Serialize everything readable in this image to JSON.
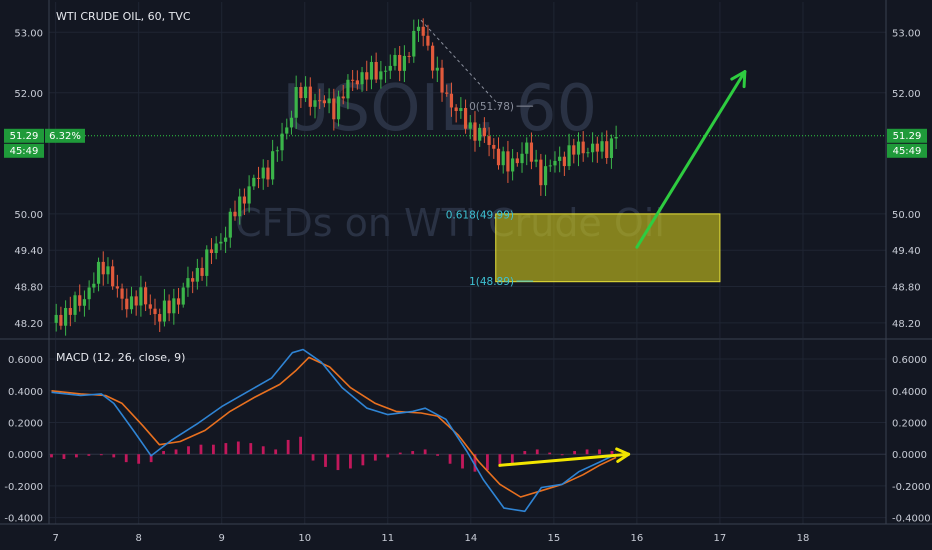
{
  "chart_data": [
    {
      "type": "candlestick",
      "title": "WTI CRUDE OIL, 60, TVC",
      "watermark_symbol": "USOIL, 60",
      "watermark_desc": "CFDs on WTI Crude Oil",
      "price_badge": "51.29",
      "change_badge": "6.32%",
      "countdown_badge": "45:49",
      "current_price": 51.29,
      "y_ticks": [
        "53.00",
        "52.00",
        "50.00",
        "49.40",
        "48.80",
        "48.20"
      ],
      "y_tick_values": [
        53.0,
        52.0,
        50.0,
        49.4,
        48.8,
        48.2
      ],
      "x_ticks": [
        "7",
        "8",
        "9",
        "10",
        "11",
        "14",
        "15",
        "16",
        "17",
        "18"
      ],
      "x_tick_values": [
        0,
        1,
        2,
        3,
        4,
        5,
        6,
        7,
        8,
        9
      ],
      "ylim": [
        47.95,
        53.5
      ],
      "xlim": [
        -0.08,
        10.0
      ],
      "x_unit": "trading day index (0 = day 7)",
      "grid": true,
      "fib_levels": [
        {
          "label": "0(51.78)",
          "value": 51.78
        },
        {
          "label": "0.618(49.99)",
          "value": 49.99
        },
        {
          "label": "1(48.89)",
          "value": 48.89
        }
      ],
      "target_zone": {
        "x_start": 5.3,
        "x_end": 8.0,
        "y_top": 50.0,
        "y_bottom": 48.88,
        "color": "#c9c41b"
      },
      "projection_arrow": {
        "from": [
          7.0,
          49.45
        ],
        "to": [
          8.3,
          52.35
        ],
        "color": "#2ecc40"
      },
      "price_path": [
        {
          "x": -0.05,
          "y": 48.2
        },
        {
          "x": 0.3,
          "y": 48.55
        },
        {
          "x": 0.6,
          "y": 49.2
        },
        {
          "x": 0.8,
          "y": 48.5
        },
        {
          "x": 1.0,
          "y": 48.65
        },
        {
          "x": 1.25,
          "y": 48.3
        },
        {
          "x": 1.4,
          "y": 48.5
        },
        {
          "x": 1.6,
          "y": 48.85
        },
        {
          "x": 2.0,
          "y": 49.6
        },
        {
          "x": 2.3,
          "y": 50.4
        },
        {
          "x": 2.55,
          "y": 50.75
        },
        {
          "x": 2.75,
          "y": 51.3
        },
        {
          "x": 2.9,
          "y": 52.0
        },
        {
          "x": 3.1,
          "y": 51.9
        },
        {
          "x": 3.35,
          "y": 51.75
        },
        {
          "x": 3.6,
          "y": 52.25
        },
        {
          "x": 3.9,
          "y": 52.35
        },
        {
          "x": 4.2,
          "y": 52.55
        },
        {
          "x": 4.4,
          "y": 53.15
        },
        {
          "x": 4.6,
          "y": 52.2
        },
        {
          "x": 4.9,
          "y": 51.55
        },
        {
          "x": 5.2,
          "y": 51.2
        },
        {
          "x": 5.45,
          "y": 50.75
        },
        {
          "x": 5.65,
          "y": 51.1
        },
        {
          "x": 5.85,
          "y": 50.65
        },
        {
          "x": 6.1,
          "y": 50.95
        },
        {
          "x": 6.35,
          "y": 51.1
        },
        {
          "x": 6.6,
          "y": 51.05
        },
        {
          "x": 6.75,
          "y": 51.29
        }
      ]
    },
    {
      "type": "line",
      "title": "MACD (12, 26, close, 9)",
      "y_ticks": [
        "0.6000",
        "0.4000",
        "0.2000",
        "0.0000",
        "-0.2000",
        "-0.4000"
      ],
      "y_tick_values": [
        0.6,
        0.4,
        0.2,
        0.0,
        -0.2,
        -0.4
      ],
      "ylim": [
        -0.44,
        0.72
      ],
      "grid": true,
      "trend_arrow": {
        "from": [
          5.35,
          -0.07
        ],
        "to": [
          6.9,
          0.0
        ],
        "color": "#f2e600"
      },
      "series": [
        {
          "color": "#2f84d4",
          "values": [
            {
              "x": -0.05,
              "y": 0.39
            },
            {
              "x": 0.3,
              "y": 0.37
            },
            {
              "x": 0.55,
              "y": 0.38
            },
            {
              "x": 0.7,
              "y": 0.32
            },
            {
              "x": 0.95,
              "y": 0.14
            },
            {
              "x": 1.15,
              "y": -0.01
            },
            {
              "x": 1.4,
              "y": 0.09
            },
            {
              "x": 1.7,
              "y": 0.19
            },
            {
              "x": 2.0,
              "y": 0.3
            },
            {
              "x": 2.3,
              "y": 0.39
            },
            {
              "x": 2.6,
              "y": 0.48
            },
            {
              "x": 2.85,
              "y": 0.64
            },
            {
              "x": 2.98,
              "y": 0.66
            },
            {
              "x": 3.2,
              "y": 0.58
            },
            {
              "x": 3.45,
              "y": 0.42
            },
            {
              "x": 3.75,
              "y": 0.29
            },
            {
              "x": 4.0,
              "y": 0.25
            },
            {
              "x": 4.3,
              "y": 0.27
            },
            {
              "x": 4.45,
              "y": 0.29
            },
            {
              "x": 4.7,
              "y": 0.22
            },
            {
              "x": 4.95,
              "y": 0.02
            },
            {
              "x": 5.15,
              "y": -0.16
            },
            {
              "x": 5.4,
              "y": -0.34
            },
            {
              "x": 5.65,
              "y": -0.36
            },
            {
              "x": 5.85,
              "y": -0.21
            },
            {
              "x": 6.1,
              "y": -0.19
            },
            {
              "x": 6.3,
              "y": -0.11
            },
            {
              "x": 6.55,
              "y": -0.05
            },
            {
              "x": 6.75,
              "y": 0.0
            }
          ]
        },
        {
          "color": "#e8701f",
          "values": [
            {
              "x": -0.05,
              "y": 0.4
            },
            {
              "x": 0.3,
              "y": 0.38
            },
            {
              "x": 0.6,
              "y": 0.37
            },
            {
              "x": 0.8,
              "y": 0.32
            },
            {
              "x": 1.05,
              "y": 0.18
            },
            {
              "x": 1.25,
              "y": 0.06
            },
            {
              "x": 1.5,
              "y": 0.08
            },
            {
              "x": 1.8,
              "y": 0.15
            },
            {
              "x": 2.1,
              "y": 0.27
            },
            {
              "x": 2.4,
              "y": 0.36
            },
            {
              "x": 2.7,
              "y": 0.44
            },
            {
              "x": 2.9,
              "y": 0.53
            },
            {
              "x": 3.05,
              "y": 0.61
            },
            {
              "x": 3.3,
              "y": 0.55
            },
            {
              "x": 3.55,
              "y": 0.42
            },
            {
              "x": 3.85,
              "y": 0.32
            },
            {
              "x": 4.1,
              "y": 0.27
            },
            {
              "x": 4.4,
              "y": 0.26
            },
            {
              "x": 4.6,
              "y": 0.24
            },
            {
              "x": 4.85,
              "y": 0.12
            },
            {
              "x": 5.1,
              "y": -0.05
            },
            {
              "x": 5.35,
              "y": -0.19
            },
            {
              "x": 5.6,
              "y": -0.27
            },
            {
              "x": 5.85,
              "y": -0.23
            },
            {
              "x": 6.1,
              "y": -0.19
            },
            {
              "x": 6.35,
              "y": -0.13
            },
            {
              "x": 6.55,
              "y": -0.07
            },
            {
              "x": 6.75,
              "y": -0.02
            }
          ]
        }
      ],
      "histogram_color": "#c2185b",
      "histogram": [
        {
          "x": -0.05,
          "y": -0.02
        },
        {
          "x": 0.1,
          "y": -0.03
        },
        {
          "x": 0.25,
          "y": -0.02
        },
        {
          "x": 0.4,
          "y": -0.01
        },
        {
          "x": 0.55,
          "y": -0.005
        },
        {
          "x": 0.7,
          "y": -0.02
        },
        {
          "x": 0.85,
          "y": -0.05
        },
        {
          "x": 1.0,
          "y": -0.06
        },
        {
          "x": 1.15,
          "y": -0.05
        },
        {
          "x": 1.3,
          "y": 0.02
        },
        {
          "x": 1.45,
          "y": 0.03
        },
        {
          "x": 1.6,
          "y": 0.05
        },
        {
          "x": 1.75,
          "y": 0.06
        },
        {
          "x": 1.9,
          "y": 0.06
        },
        {
          "x": 2.05,
          "y": 0.07
        },
        {
          "x": 2.2,
          "y": 0.08
        },
        {
          "x": 2.35,
          "y": 0.07
        },
        {
          "x": 2.5,
          "y": 0.05
        },
        {
          "x": 2.65,
          "y": 0.03
        },
        {
          "x": 2.8,
          "y": 0.09
        },
        {
          "x": 2.95,
          "y": 0.11
        },
        {
          "x": 3.1,
          "y": -0.04
        },
        {
          "x": 3.25,
          "y": -0.08
        },
        {
          "x": 3.4,
          "y": -0.1
        },
        {
          "x": 3.55,
          "y": -0.09
        },
        {
          "x": 3.7,
          "y": -0.07
        },
        {
          "x": 3.85,
          "y": -0.04
        },
        {
          "x": 4.0,
          "y": -0.02
        },
        {
          "x": 4.15,
          "y": 0.01
        },
        {
          "x": 4.3,
          "y": 0.02
        },
        {
          "x": 4.45,
          "y": 0.03
        },
        {
          "x": 4.6,
          "y": -0.01
        },
        {
          "x": 4.75,
          "y": -0.06
        },
        {
          "x": 4.9,
          "y": -0.09
        },
        {
          "x": 5.05,
          "y": -0.11
        },
        {
          "x": 5.2,
          "y": -0.1
        },
        {
          "x": 5.35,
          "y": -0.08
        },
        {
          "x": 5.5,
          "y": -0.06
        },
        {
          "x": 5.65,
          "y": 0.02
        },
        {
          "x": 5.8,
          "y": 0.03
        },
        {
          "x": 5.95,
          "y": 0.01
        },
        {
          "x": 6.1,
          "y": 0.0
        },
        {
          "x": 6.25,
          "y": 0.02
        },
        {
          "x": 6.4,
          "y": 0.03
        },
        {
          "x": 6.55,
          "y": 0.03
        },
        {
          "x": 6.7,
          "y": 0.02
        }
      ]
    }
  ]
}
